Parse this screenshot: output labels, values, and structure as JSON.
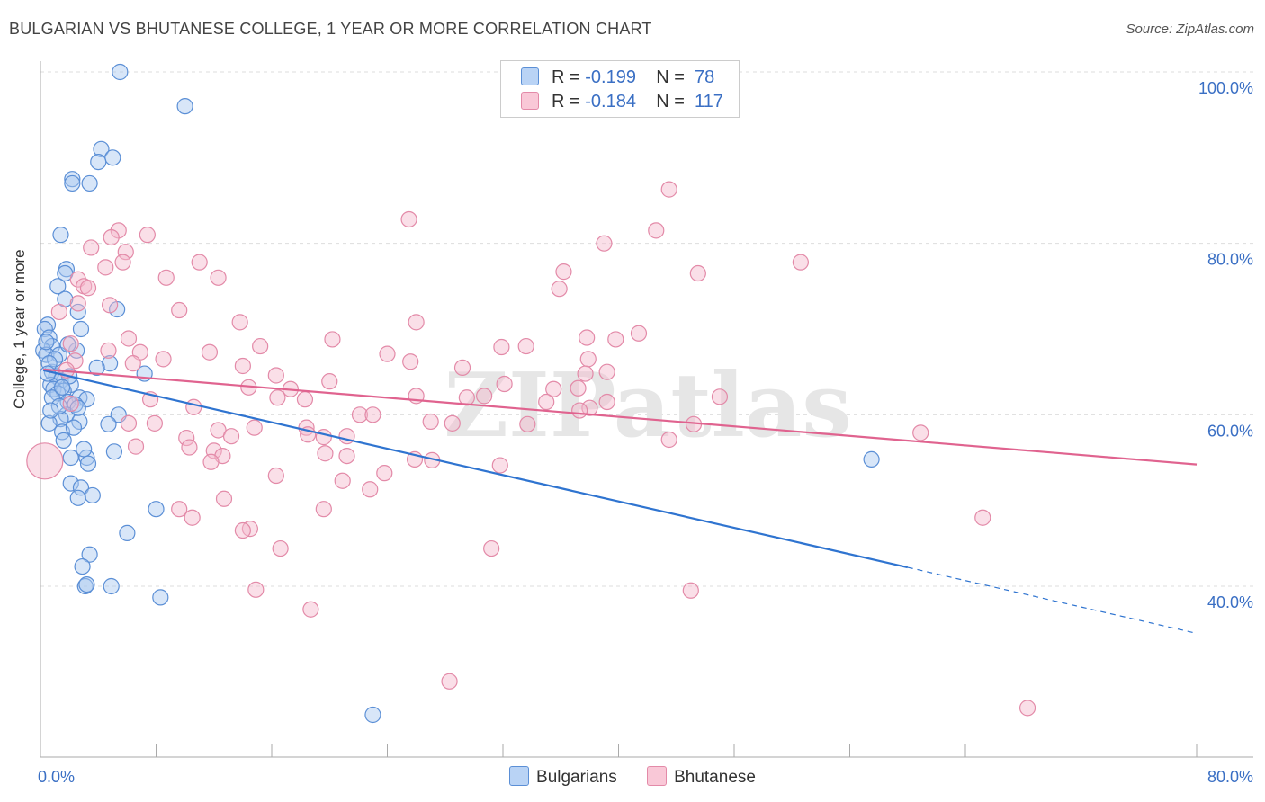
{
  "title": "BULGARIAN VS BHUTANESE COLLEGE, 1 YEAR OR MORE CORRELATION CHART",
  "source": "Source: ZipAtlas.com",
  "watermark": "ZIPatlas",
  "legend": {
    "rows": [
      {
        "r_label": "R =",
        "r_value": "-0.199",
        "n_label": "N =",
        "n_value": "78"
      },
      {
        "r_label": "R =",
        "r_value": "-0.184",
        "n_label": "N =",
        "n_value": "117"
      }
    ]
  },
  "bottom_legend": [
    "Bulgarians",
    "Bhutanese"
  ],
  "colors": {
    "blue_fill": "#a8c8f0",
    "blue_stroke": "#5b8fd6",
    "blue_line": "#2f74d0",
    "pink_fill": "#f5b8cb",
    "pink_stroke": "#e38aa8",
    "pink_line": "#e0638f",
    "tick_text": "#3a6fc4",
    "grid": "#dddddd"
  },
  "chart_data": {
    "type": "scatter",
    "title": "BULGARIAN VS BHUTANESE COLLEGE, 1 YEAR OR MORE CORRELATION CHART",
    "xlabel": "",
    "ylabel": "College, 1 year or more",
    "xlim": [
      0,
      80
    ],
    "ylim": [
      20,
      104
    ],
    "x_tick_labels": [
      {
        "value": 0,
        "label": "0.0%"
      },
      {
        "value": 80,
        "label": "80.0%"
      }
    ],
    "y_tick_labels": [
      {
        "value": 100,
        "label": "100.0%"
      },
      {
        "value": 80,
        "label": "80.0%"
      },
      {
        "value": 60,
        "label": "60.0%"
      },
      {
        "value": 40,
        "label": "40.0%"
      }
    ],
    "grid": true,
    "series": [
      {
        "name": "Bulgarians",
        "R": -0.199,
        "N": 78,
        "trend": {
          "x0": 0.2,
          "y0": 65.2,
          "x1": 60,
          "y1": 42.2,
          "dash_to_x": 80,
          "dash_to_y": 34.5
        },
        "points": [
          [
            5.5,
            100
          ],
          [
            10,
            96
          ],
          [
            4.2,
            91
          ],
          [
            5,
            90
          ],
          [
            4,
            89.5
          ],
          [
            2.2,
            87.5
          ],
          [
            2.2,
            87
          ],
          [
            3.4,
            87
          ],
          [
            1.4,
            81
          ],
          [
            1.8,
            77
          ],
          [
            1.7,
            76.5
          ],
          [
            1.2,
            75
          ],
          [
            1.7,
            73.5
          ],
          [
            5.3,
            72.3
          ],
          [
            2.6,
            72
          ],
          [
            2.8,
            70
          ],
          [
            0.5,
            70.5
          ],
          [
            0.3,
            70
          ],
          [
            0.6,
            69
          ],
          [
            0.8,
            68
          ],
          [
            0.2,
            67.5
          ],
          [
            0.4,
            67
          ],
          [
            1.3,
            67
          ],
          [
            2.5,
            67.5
          ],
          [
            4.8,
            66
          ],
          [
            3.9,
            65.5
          ],
          [
            7.2,
            64.8
          ],
          [
            0.8,
            65
          ],
          [
            1.1,
            64.5
          ],
          [
            1.4,
            64
          ],
          [
            0.7,
            63.5
          ],
          [
            2.1,
            63.5
          ],
          [
            0.9,
            63
          ],
          [
            1.6,
            62.8
          ],
          [
            1.2,
            62.5
          ],
          [
            0.8,
            62
          ],
          [
            2.7,
            62
          ],
          [
            3.2,
            61.8
          ],
          [
            1.9,
            61.5
          ],
          [
            2.4,
            61.2
          ],
          [
            5.4,
            60
          ],
          [
            1.8,
            60
          ],
          [
            1.4,
            59.5
          ],
          [
            2.7,
            59.2
          ],
          [
            0.6,
            59
          ],
          [
            4.7,
            58.9
          ],
          [
            1.5,
            58
          ],
          [
            1.6,
            57
          ],
          [
            5.1,
            55.7
          ],
          [
            3.2,
            55
          ],
          [
            2.1,
            55
          ],
          [
            3.3,
            54.3
          ],
          [
            2.1,
            52
          ],
          [
            2.8,
            51.5
          ],
          [
            3.6,
            50.6
          ],
          [
            2.6,
            50.3
          ],
          [
            8,
            49
          ],
          [
            6,
            46.2
          ],
          [
            3.4,
            43.7
          ],
          [
            2.9,
            42.3
          ],
          [
            3.1,
            40
          ],
          [
            4.9,
            40
          ],
          [
            3.2,
            40.2
          ],
          [
            8.3,
            38.7
          ],
          [
            57.5,
            54.8
          ],
          [
            23,
            25
          ],
          [
            0.4,
            68.5
          ],
          [
            1.0,
            66.5
          ],
          [
            0.6,
            66
          ],
          [
            2.0,
            64.5
          ],
          [
            1.3,
            61
          ],
          [
            0.7,
            60.5
          ],
          [
            2.3,
            58.5
          ],
          [
            3.0,
            56
          ],
          [
            1.5,
            63.2
          ],
          [
            2.6,
            60.8
          ],
          [
            0.5,
            64.8
          ],
          [
            1.9,
            68.2
          ]
        ]
      },
      {
        "name": "Bhutanese",
        "R": -0.184,
        "N": 117,
        "trend": {
          "x0": 0.2,
          "y0": 65.3,
          "x1": 80,
          "y1": 54.2
        },
        "points": [
          [
            43.5,
            86.3
          ],
          [
            25.5,
            82.8
          ],
          [
            42.6,
            81.5
          ],
          [
            5.4,
            81.5
          ],
          [
            7.4,
            81
          ],
          [
            4.9,
            80.7
          ],
          [
            39,
            80
          ],
          [
            3.5,
            79.5
          ],
          [
            5.9,
            79
          ],
          [
            52.6,
            77.8
          ],
          [
            11,
            77.8
          ],
          [
            5.7,
            77.8
          ],
          [
            4.5,
            77.2
          ],
          [
            36.2,
            76.7
          ],
          [
            45.5,
            76.5
          ],
          [
            8.7,
            76
          ],
          [
            12.3,
            76
          ],
          [
            2.6,
            75.8
          ],
          [
            3,
            75
          ],
          [
            3.3,
            74.8
          ],
          [
            35.9,
            74.7
          ],
          [
            4.8,
            72.8
          ],
          [
            2.6,
            73
          ],
          [
            9.6,
            72.2
          ],
          [
            1.3,
            72
          ],
          [
            13.8,
            70.8
          ],
          [
            26,
            70.8
          ],
          [
            41.4,
            69.5
          ],
          [
            37.8,
            69
          ],
          [
            39.8,
            68.8
          ],
          [
            20.2,
            68.8
          ],
          [
            6.1,
            68.9
          ],
          [
            2.1,
            68.3
          ],
          [
            15.2,
            68
          ],
          [
            33.6,
            68
          ],
          [
            31.9,
            67.9
          ],
          [
            4.7,
            67.5
          ],
          [
            11.7,
            67.3
          ],
          [
            24,
            67.1
          ],
          [
            6.9,
            67.3
          ],
          [
            8.5,
            66.5
          ],
          [
            2.4,
            66.3
          ],
          [
            37.9,
            66.5
          ],
          [
            6.4,
            66
          ],
          [
            14,
            65.7
          ],
          [
            29.2,
            65.5
          ],
          [
            1.8,
            65.2
          ],
          [
            39.2,
            65
          ],
          [
            37.7,
            64.8
          ],
          [
            16.3,
            64.6
          ],
          [
            20,
            63.9
          ],
          [
            32.1,
            63.6
          ],
          [
            14.4,
            63.2
          ],
          [
            37.2,
            63.1
          ],
          [
            35.5,
            63
          ],
          [
            17.3,
            63
          ],
          [
            30.7,
            62.2
          ],
          [
            47,
            62.1
          ],
          [
            16.4,
            62
          ],
          [
            26,
            62.2
          ],
          [
            29.5,
            62
          ],
          [
            7.6,
            61.8
          ],
          [
            2.1,
            61.3
          ],
          [
            39.2,
            61.5
          ],
          [
            35,
            61.5
          ],
          [
            38,
            60.8
          ],
          [
            10.6,
            60.9
          ],
          [
            37.3,
            60.5
          ],
          [
            22.1,
            60
          ],
          [
            23,
            60
          ],
          [
            27,
            59.2
          ],
          [
            28.5,
            59
          ],
          [
            6.1,
            59
          ],
          [
            7.9,
            59
          ],
          [
            14.8,
            58.5
          ],
          [
            18.4,
            58.5
          ],
          [
            12.3,
            58.2
          ],
          [
            33.7,
            58.9
          ],
          [
            45.2,
            58.9
          ],
          [
            60.9,
            57.9
          ],
          [
            18.5,
            57.7
          ],
          [
            21.2,
            57.5
          ],
          [
            19.6,
            57.4
          ],
          [
            10.1,
            57.3
          ],
          [
            13.2,
            57.5
          ],
          [
            43.5,
            57.1
          ],
          [
            6.6,
            56.3
          ],
          [
            10.3,
            56.2
          ],
          [
            12,
            55.8
          ],
          [
            19.7,
            55.5
          ],
          [
            12.6,
            55.2
          ],
          [
            21.2,
            55.2
          ],
          [
            25.9,
            54.8
          ],
          [
            27.1,
            54.7
          ],
          [
            31.8,
            54.1
          ],
          [
            11.8,
            54.5
          ],
          [
            23.8,
            53.2
          ],
          [
            16.3,
            52.9
          ],
          [
            20.9,
            52.3
          ],
          [
            22.8,
            51.3
          ],
          [
            12.7,
            50.2
          ],
          [
            9.6,
            49
          ],
          [
            19.6,
            49
          ],
          [
            10.5,
            48
          ],
          [
            65.2,
            48
          ],
          [
            14.5,
            46.7
          ],
          [
            14,
            46.5
          ],
          [
            16.6,
            44.4
          ],
          [
            31.2,
            44.4
          ],
          [
            14.9,
            39.6
          ],
          [
            45,
            39.5
          ],
          [
            18.7,
            37.3
          ],
          [
            28.3,
            28.9
          ],
          [
            68.3,
            25.8
          ],
          [
            0.3,
            54.6
          ],
          [
            25.6,
            66.2
          ],
          [
            18.3,
            61.8
          ]
        ]
      }
    ]
  }
}
